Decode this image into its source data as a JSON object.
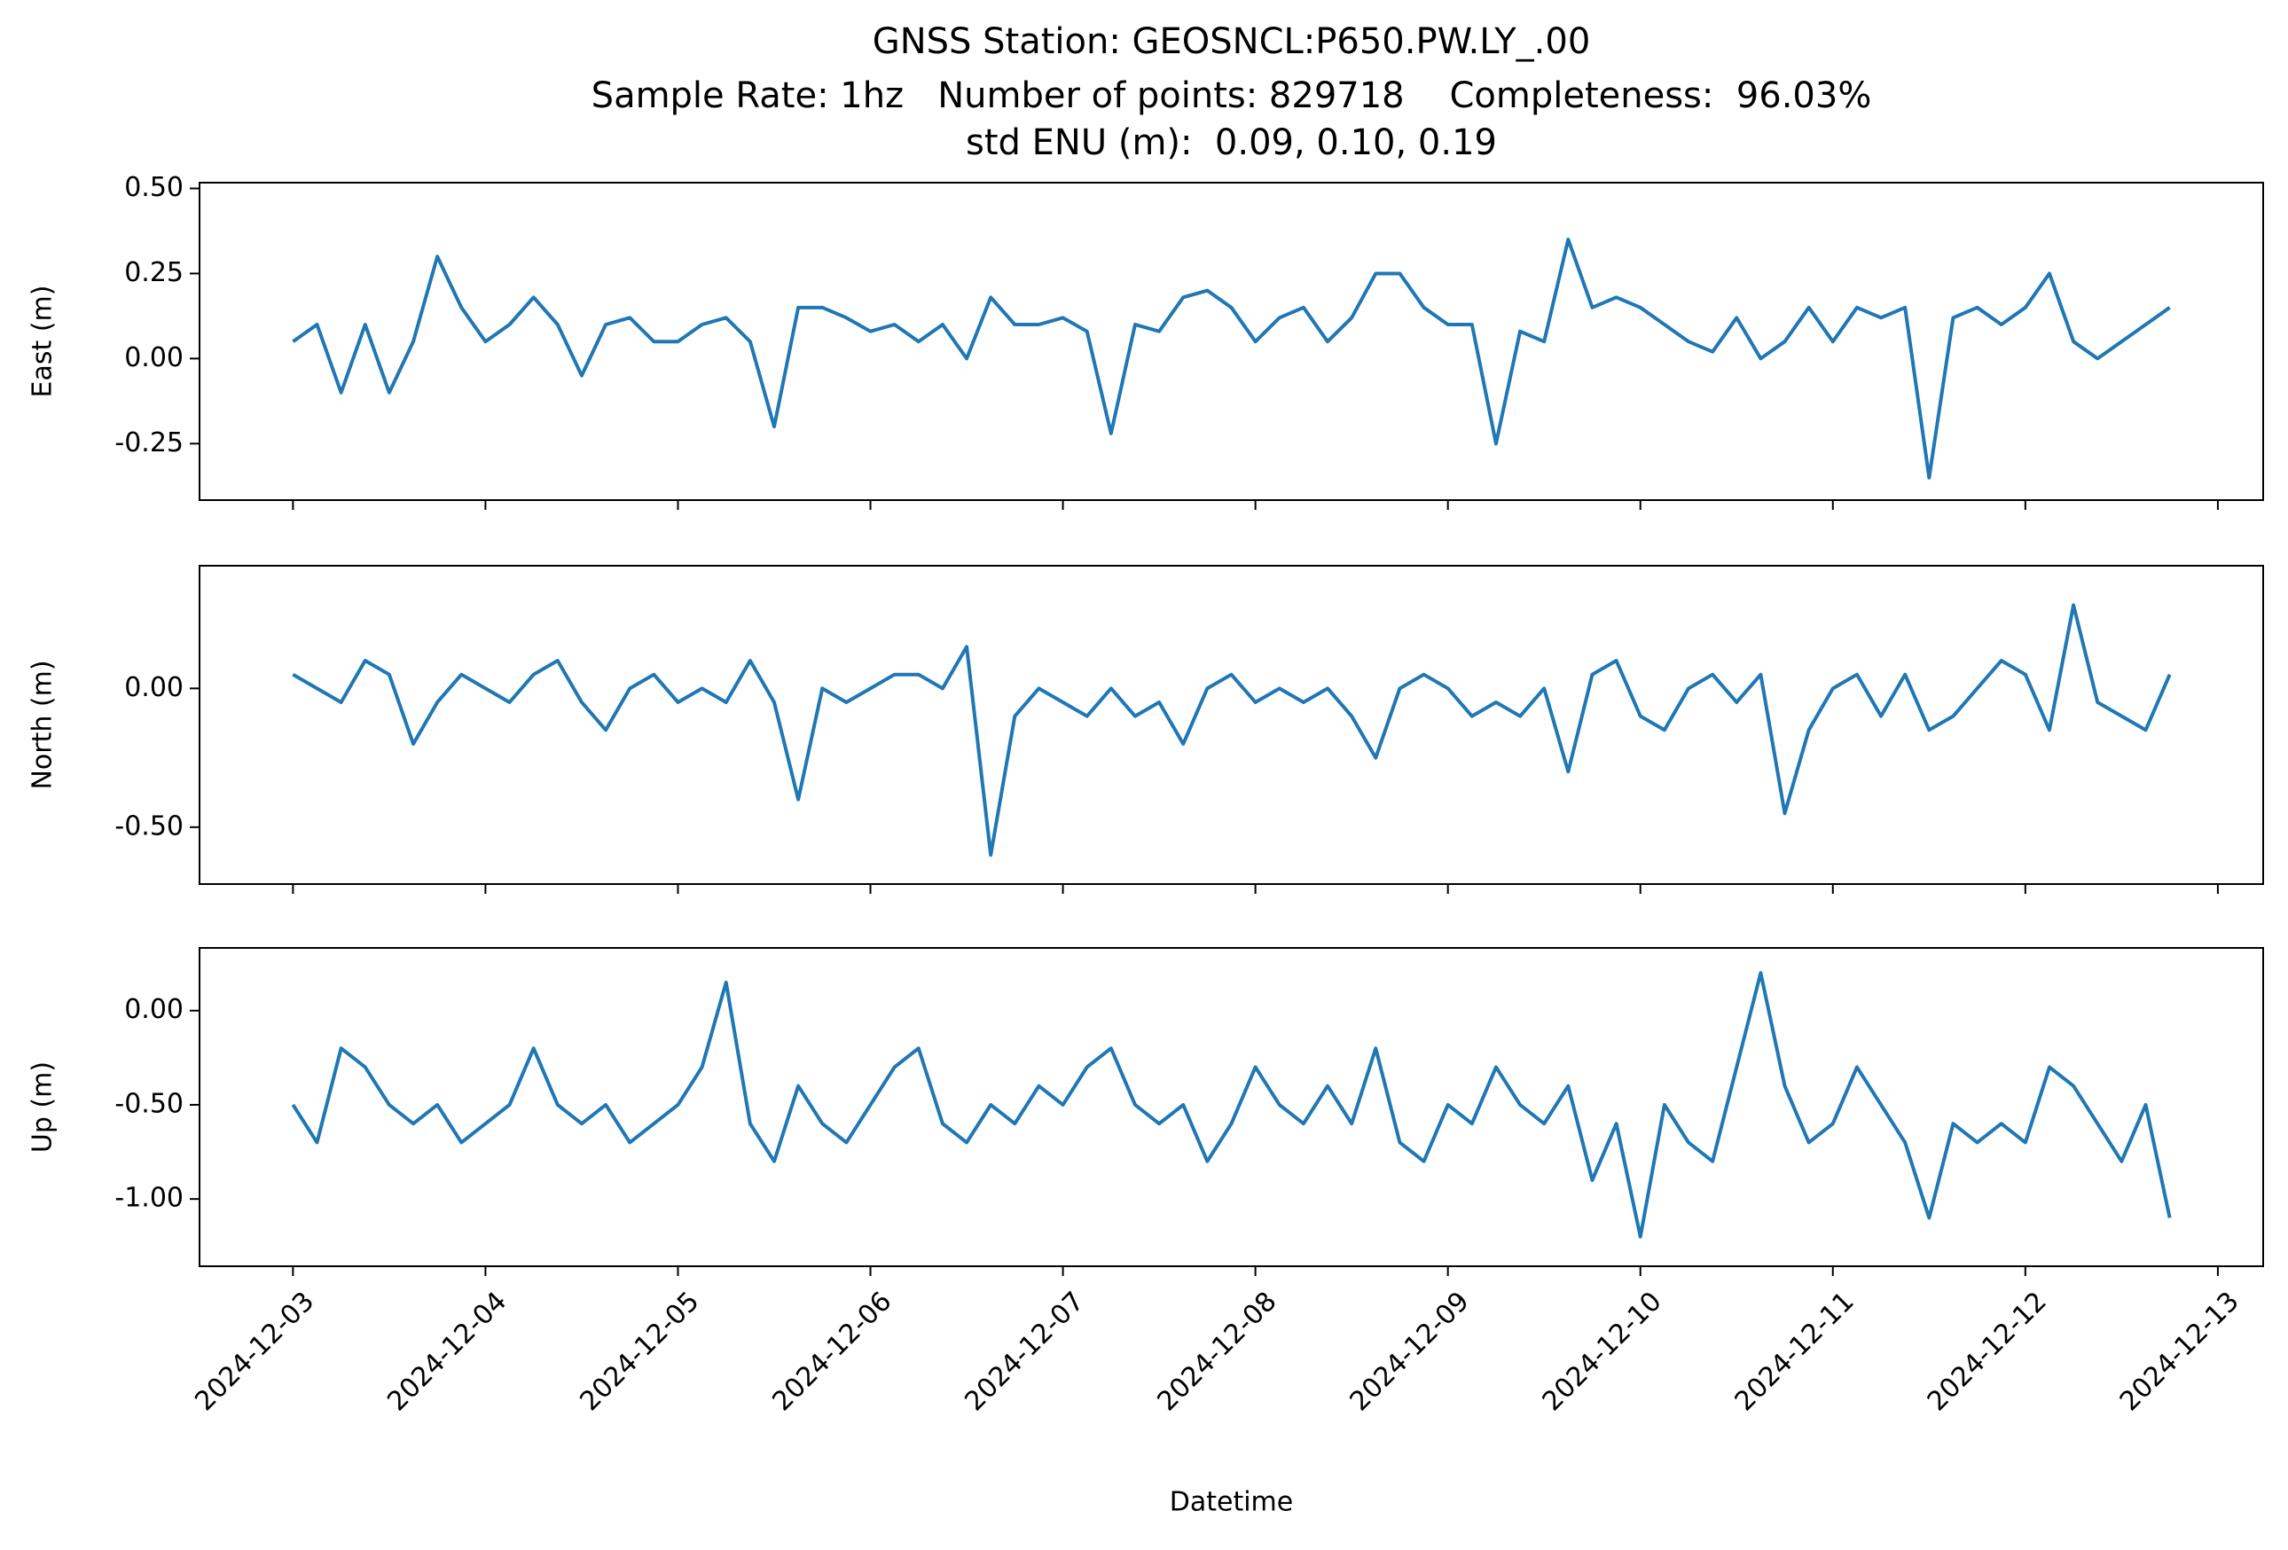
{
  "chart_data": [
    {
      "type": "line",
      "title": "GNSS Station: GEOSNCL:P650.PW.LY_.00",
      "subtitle": [
        "Sample Rate: 1hz   Number of points: 829718    Completeness:  96.03%",
        "std ENU (m):  0.09, 0.10, 0.19"
      ],
      "ylabel": "East (m)",
      "color": "#1f77b4",
      "x": [
        "2024-12-03T00:00",
        "2024-12-03T03:00",
        "2024-12-03T06:00",
        "2024-12-03T09:00",
        "2024-12-03T12:00",
        "2024-12-03T15:00",
        "2024-12-03T18:00",
        "2024-12-03T21:00",
        "2024-12-04T00:00",
        "2024-12-04T03:00",
        "2024-12-04T06:00",
        "2024-12-04T09:00",
        "2024-12-04T12:00",
        "2024-12-04T15:00",
        "2024-12-04T18:00",
        "2024-12-04T21:00",
        "2024-12-05T00:00",
        "2024-12-05T03:00",
        "2024-12-05T06:00",
        "2024-12-05T09:00",
        "2024-12-05T12:00",
        "2024-12-05T15:00",
        "2024-12-05T18:00",
        "2024-12-05T21:00",
        "2024-12-06T00:00",
        "2024-12-06T03:00",
        "2024-12-06T06:00",
        "2024-12-06T09:00",
        "2024-12-06T12:00",
        "2024-12-06T15:00",
        "2024-12-06T18:00",
        "2024-12-06T21:00",
        "2024-12-07T00:00",
        "2024-12-07T03:00",
        "2024-12-07T06:00",
        "2024-12-07T09:00",
        "2024-12-07T12:00",
        "2024-12-07T15:00",
        "2024-12-07T18:00",
        "2024-12-07T21:00",
        "2024-12-08T00:00",
        "2024-12-08T03:00",
        "2024-12-08T06:00",
        "2024-12-08T09:00",
        "2024-12-08T12:00",
        "2024-12-08T15:00",
        "2024-12-08T18:00",
        "2024-12-08T21:00",
        "2024-12-09T00:00",
        "2024-12-09T03:00",
        "2024-12-09T06:00",
        "2024-12-09T09:00",
        "2024-12-09T12:00",
        "2024-12-09T15:00",
        "2024-12-09T18:00",
        "2024-12-09T21:00",
        "2024-12-10T00:00",
        "2024-12-10T03:00",
        "2024-12-10T06:00",
        "2024-12-10T09:00",
        "2024-12-10T12:00",
        "2024-12-10T15:00",
        "2024-12-10T18:00",
        "2024-12-10T21:00",
        "2024-12-11T00:00",
        "2024-12-11T03:00",
        "2024-12-11T06:00",
        "2024-12-11T09:00",
        "2024-12-11T12:00",
        "2024-12-11T15:00",
        "2024-12-11T18:00",
        "2024-12-11T21:00",
        "2024-12-12T00:00",
        "2024-12-12T03:00",
        "2024-12-12T06:00",
        "2024-12-12T09:00",
        "2024-12-12T12:00",
        "2024-12-12T15:00",
        "2024-12-12T18:00"
      ],
      "values": [
        0.05,
        0.1,
        -0.1,
        0.1,
        -0.1,
        0.05,
        0.3,
        0.15,
        0.05,
        0.1,
        0.18,
        0.1,
        -0.05,
        0.1,
        0.12,
        0.05,
        0.05,
        0.1,
        0.12,
        0.05,
        -0.2,
        0.15,
        0.15,
        0.12,
        0.08,
        0.1,
        0.05,
        0.1,
        0.0,
        0.18,
        0.1,
        0.1,
        0.12,
        0.08,
        -0.22,
        0.1,
        0.08,
        0.18,
        0.2,
        0.15,
        0.05,
        0.12,
        0.15,
        0.05,
        0.12,
        0.25,
        0.25,
        0.15,
        0.1,
        0.1,
        -0.25,
        0.08,
        0.05,
        0.35,
        0.15,
        0.18,
        0.15,
        0.1,
        0.05,
        0.02,
        0.12,
        0.0,
        0.05,
        0.15,
        0.05,
        0.15,
        0.12,
        0.15,
        -0.35,
        0.12,
        0.15,
        0.1,
        0.15,
        0.25,
        0.05,
        0.0,
        0.05,
        0.1,
        0.15
      ],
      "xlim": [
        "2024-12-02T12:21",
        "2024-12-13T05:39"
      ],
      "xticks": [
        "2024-12-03",
        "2024-12-04",
        "2024-12-05",
        "2024-12-06",
        "2024-12-07",
        "2024-12-08",
        "2024-12-09",
        "2024-12-10",
        "2024-12-11",
        "2024-12-12",
        "2024-12-13"
      ],
      "xticklabels_visible": false,
      "ylim": [
        -0.416,
        0.517
      ],
      "yticks": [
        {
          "value": 0.5,
          "label": "0.50"
        },
        {
          "value": 0.25,
          "label": "0.25"
        },
        {
          "value": 0,
          "label": "0.00"
        },
        {
          "value": -0.25,
          "label": "-0.25"
        }
      ]
    },
    {
      "type": "line",
      "ylabel": "North (m)",
      "color": "#1f77b4",
      "x": [
        "2024-12-03T00:00",
        "2024-12-03T03:00",
        "2024-12-03T06:00",
        "2024-12-03T09:00",
        "2024-12-03T12:00",
        "2024-12-03T15:00",
        "2024-12-03T18:00",
        "2024-12-03T21:00",
        "2024-12-04T00:00",
        "2024-12-04T03:00",
        "2024-12-04T06:00",
        "2024-12-04T09:00",
        "2024-12-04T12:00",
        "2024-12-04T15:00",
        "2024-12-04T18:00",
        "2024-12-04T21:00",
        "2024-12-05T00:00",
        "2024-12-05T03:00",
        "2024-12-05T06:00",
        "2024-12-05T09:00",
        "2024-12-05T12:00",
        "2024-12-05T15:00",
        "2024-12-05T18:00",
        "2024-12-05T21:00",
        "2024-12-06T00:00",
        "2024-12-06T03:00",
        "2024-12-06T06:00",
        "2024-12-06T09:00",
        "2024-12-06T12:00",
        "2024-12-06T15:00",
        "2024-12-06T18:00",
        "2024-12-06T21:00",
        "2024-12-07T00:00",
        "2024-12-07T03:00",
        "2024-12-07T06:00",
        "2024-12-07T09:00",
        "2024-12-07T12:00",
        "2024-12-07T15:00",
        "2024-12-07T18:00",
        "2024-12-07T21:00",
        "2024-12-08T00:00",
        "2024-12-08T03:00",
        "2024-12-08T06:00",
        "2024-12-08T09:00",
        "2024-12-08T12:00",
        "2024-12-08T15:00",
        "2024-12-08T18:00",
        "2024-12-08T21:00",
        "2024-12-09T00:00",
        "2024-12-09T03:00",
        "2024-12-09T06:00",
        "2024-12-09T09:00",
        "2024-12-09T12:00",
        "2024-12-09T15:00",
        "2024-12-09T18:00",
        "2024-12-09T21:00",
        "2024-12-10T00:00",
        "2024-12-10T03:00",
        "2024-12-10T06:00",
        "2024-12-10T09:00",
        "2024-12-10T12:00",
        "2024-12-10T15:00",
        "2024-12-10T18:00",
        "2024-12-10T21:00",
        "2024-12-11T00:00",
        "2024-12-11T03:00",
        "2024-12-11T06:00",
        "2024-12-11T09:00",
        "2024-12-11T12:00",
        "2024-12-11T15:00",
        "2024-12-11T18:00",
        "2024-12-11T21:00",
        "2024-12-12T00:00",
        "2024-12-12T03:00",
        "2024-12-12T06:00",
        "2024-12-12T09:00",
        "2024-12-12T12:00",
        "2024-12-12T15:00",
        "2024-12-12T18:00"
      ],
      "values": [
        0.05,
        0.0,
        -0.05,
        0.1,
        0.05,
        -0.2,
        -0.05,
        0.05,
        0.0,
        -0.05,
        0.05,
        0.1,
        -0.05,
        -0.15,
        0.0,
        0.05,
        -0.05,
        0.0,
        -0.05,
        0.1,
        -0.05,
        -0.4,
        0.0,
        -0.05,
        0.0,
        0.05,
        0.05,
        0.0,
        0.15,
        -0.6,
        -0.1,
        0.0,
        -0.05,
        -0.1,
        0.0,
        -0.1,
        -0.05,
        -0.2,
        0.0,
        0.05,
        -0.05,
        0.0,
        -0.05,
        0.0,
        -0.1,
        -0.25,
        0.0,
        0.05,
        0.0,
        -0.1,
        -0.05,
        -0.1,
        0.0,
        -0.3,
        0.05,
        0.1,
        -0.1,
        -0.15,
        0.0,
        0.05,
        -0.05,
        0.05,
        -0.45,
        -0.15,
        0.0,
        0.05,
        -0.1,
        0.05,
        -0.15,
        -0.1,
        0.0,
        0.1,
        0.05,
        -0.15,
        0.3,
        -0.05,
        -0.1,
        -0.15,
        0.05
      ],
      "xlim": [
        "2024-12-02T12:21",
        "2024-12-13T05:39"
      ],
      "xticks": [
        "2024-12-03",
        "2024-12-04",
        "2024-12-05",
        "2024-12-06",
        "2024-12-07",
        "2024-12-08",
        "2024-12-09",
        "2024-12-10",
        "2024-12-11",
        "2024-12-12",
        "2024-12-13"
      ],
      "xticklabels_visible": false,
      "ylim": [
        -0.705,
        0.442
      ],
      "yticks": [
        {
          "value": 0,
          "label": "0.00"
        },
        {
          "value": -0.5,
          "label": "-0.50"
        }
      ]
    },
    {
      "type": "line",
      "ylabel": "Up (m)",
      "xlabel": "Datetime",
      "color": "#1f77b4",
      "x": [
        "2024-12-03T00:00",
        "2024-12-03T03:00",
        "2024-12-03T06:00",
        "2024-12-03T09:00",
        "2024-12-03T12:00",
        "2024-12-03T15:00",
        "2024-12-03T18:00",
        "2024-12-03T21:00",
        "2024-12-04T00:00",
        "2024-12-04T03:00",
        "2024-12-04T06:00",
        "2024-12-04T09:00",
        "2024-12-04T12:00",
        "2024-12-04T15:00",
        "2024-12-04T18:00",
        "2024-12-04T21:00",
        "2024-12-05T00:00",
        "2024-12-05T03:00",
        "2024-12-05T06:00",
        "2024-12-05T09:00",
        "2024-12-05T12:00",
        "2024-12-05T15:00",
        "2024-12-05T18:00",
        "2024-12-05T21:00",
        "2024-12-06T00:00",
        "2024-12-06T03:00",
        "2024-12-06T06:00",
        "2024-12-06T09:00",
        "2024-12-06T12:00",
        "2024-12-06T15:00",
        "2024-12-06T18:00",
        "2024-12-06T21:00",
        "2024-12-07T00:00",
        "2024-12-07T03:00",
        "2024-12-07T06:00",
        "2024-12-07T09:00",
        "2024-12-07T12:00",
        "2024-12-07T15:00",
        "2024-12-07T18:00",
        "2024-12-07T21:00",
        "2024-12-08T00:00",
        "2024-12-08T03:00",
        "2024-12-08T06:00",
        "2024-12-08T09:00",
        "2024-12-08T12:00",
        "2024-12-08T15:00",
        "2024-12-08T18:00",
        "2024-12-08T21:00",
        "2024-12-09T00:00",
        "2024-12-09T03:00",
        "2024-12-09T06:00",
        "2024-12-09T09:00",
        "2024-12-09T12:00",
        "2024-12-09T15:00",
        "2024-12-09T18:00",
        "2024-12-09T21:00",
        "2024-12-10T00:00",
        "2024-12-10T03:00",
        "2024-12-10T06:00",
        "2024-12-10T09:00",
        "2024-12-10T12:00",
        "2024-12-10T15:00",
        "2024-12-10T18:00",
        "2024-12-10T21:00",
        "2024-12-11T00:00",
        "2024-12-11T03:00",
        "2024-12-11T06:00",
        "2024-12-11T09:00",
        "2024-12-11T12:00",
        "2024-12-11T15:00",
        "2024-12-11T18:00",
        "2024-12-11T21:00",
        "2024-12-12T00:00",
        "2024-12-12T03:00",
        "2024-12-12T06:00",
        "2024-12-12T09:00",
        "2024-12-12T12:00",
        "2024-12-12T15:00",
        "2024-12-12T18:00"
      ],
      "values": [
        -0.5,
        -0.7,
        -0.2,
        -0.3,
        -0.5,
        -0.6,
        -0.5,
        -0.7,
        -0.6,
        -0.5,
        -0.2,
        -0.5,
        -0.6,
        -0.5,
        -0.7,
        -0.6,
        -0.5,
        -0.3,
        0.15,
        -0.6,
        -0.8,
        -0.4,
        -0.6,
        -0.7,
        -0.5,
        -0.3,
        -0.2,
        -0.6,
        -0.7,
        -0.5,
        -0.6,
        -0.4,
        -0.5,
        -0.3,
        -0.2,
        -0.5,
        -0.6,
        -0.5,
        -0.8,
        -0.6,
        -0.3,
        -0.5,
        -0.6,
        -0.4,
        -0.6,
        -0.2,
        -0.7,
        -0.8,
        -0.5,
        -0.6,
        -0.3,
        -0.5,
        -0.6,
        -0.4,
        -0.9,
        -0.6,
        -1.2,
        -0.5,
        -0.7,
        -0.8,
        -0.3,
        0.2,
        -0.4,
        -0.7,
        -0.6,
        -0.3,
        -0.5,
        -0.7,
        -1.1,
        -0.6,
        -0.7,
        -0.6,
        -0.7,
        -0.3,
        -0.4,
        -0.6,
        -0.8,
        -0.5,
        -1.1
      ],
      "xlim": [
        "2024-12-02T12:21",
        "2024-12-13T05:39"
      ],
      "xticks": [
        "2024-12-03",
        "2024-12-04",
        "2024-12-05",
        "2024-12-06",
        "2024-12-07",
        "2024-12-08",
        "2024-12-09",
        "2024-12-10",
        "2024-12-11",
        "2024-12-12",
        "2024-12-13"
      ],
      "xticklabels_visible": true,
      "ylim": [
        -1.357,
        0.333
      ],
      "yticks": [
        {
          "value": 0,
          "label": "0.00"
        },
        {
          "value": -0.5,
          "label": "-0.50"
        },
        {
          "value": -1,
          "label": "-1.00"
        }
      ]
    }
  ]
}
